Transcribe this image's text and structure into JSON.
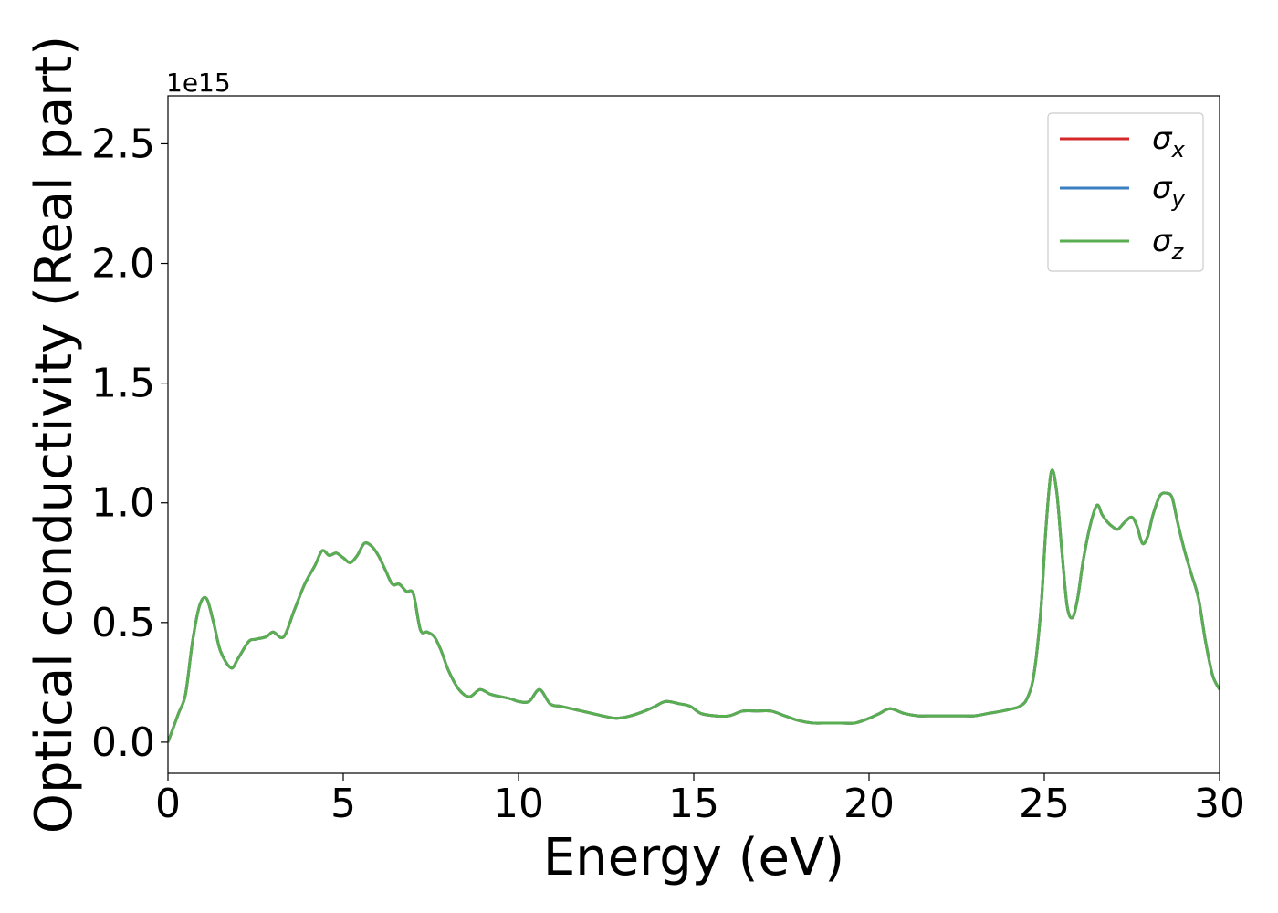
{
  "chart_data": {
    "type": "line",
    "xlabel": "Energy (eV)",
    "ylabel": "Optical conductivity (Real part)",
    "y_offset_text": "1e15",
    "xlim": [
      0,
      30
    ],
    "ylim": [
      -0.13,
      2.7
    ],
    "y_scale_factor": 1000000000000000.0,
    "grid": false,
    "legend_position": "top-right",
    "x_ticks": [
      0,
      5,
      10,
      15,
      20,
      25,
      30
    ],
    "x_tick_labels": [
      "0",
      "5",
      "10",
      "15",
      "20",
      "25",
      "30"
    ],
    "y_ticks": [
      0.0,
      0.5,
      1.0,
      1.5,
      2.0,
      2.5
    ],
    "y_tick_labels": [
      "0.0",
      "0.5",
      "1.0",
      "1.5",
      "2.0",
      "2.5"
    ],
    "x": [
      0,
      0.3,
      0.5,
      0.7,
      0.9,
      1.1,
      1.3,
      1.5,
      1.8,
      2.0,
      2.3,
      2.5,
      2.8,
      3.0,
      3.3,
      3.6,
      3.9,
      4.2,
      4.4,
      4.6,
      4.8,
      5.0,
      5.2,
      5.4,
      5.6,
      5.8,
      6.0,
      6.2,
      6.4,
      6.6,
      6.8,
      7.0,
      7.2,
      7.4,
      7.6,
      7.8,
      8.0,
      8.3,
      8.6,
      8.9,
      9.2,
      9.5,
      9.8,
      10.0,
      10.3,
      10.6,
      10.9,
      11.2,
      11.5,
      11.8,
      12.1,
      12.4,
      12.8,
      13.2,
      13.6,
      13.9,
      14.2,
      14.6,
      14.9,
      15.2,
      15.6,
      16.0,
      16.4,
      16.8,
      17.2,
      17.6,
      18.0,
      18.4,
      18.8,
      19.2,
      19.6,
      20.0,
      20.3,
      20.6,
      21.0,
      21.4,
      21.8,
      22.2,
      22.6,
      23.0,
      23.4,
      23.8,
      24.1,
      24.3,
      24.5,
      24.7,
      24.9,
      25.05,
      25.2,
      25.35,
      25.5,
      25.65,
      25.8,
      25.95,
      26.1,
      26.3,
      26.5,
      26.65,
      26.8,
      26.95,
      27.1,
      27.3,
      27.5,
      27.65,
      27.8,
      27.95,
      28.1,
      28.3,
      28.5,
      28.65,
      28.8,
      29.0,
      29.2,
      29.4,
      29.6,
      29.8,
      30.0
    ],
    "series": [
      {
        "name": "σ_x",
        "name_base": "σ",
        "name_sub": "x",
        "color": "#d62728",
        "values": [
          0.0,
          0.12,
          0.2,
          0.42,
          0.57,
          0.6,
          0.5,
          0.38,
          0.31,
          0.35,
          0.42,
          0.43,
          0.44,
          0.46,
          0.44,
          0.55,
          0.66,
          0.74,
          0.8,
          0.78,
          0.79,
          0.77,
          0.75,
          0.78,
          0.83,
          0.82,
          0.78,
          0.72,
          0.66,
          0.66,
          0.63,
          0.62,
          0.47,
          0.46,
          0.44,
          0.38,
          0.3,
          0.22,
          0.19,
          0.22,
          0.2,
          0.19,
          0.18,
          0.17,
          0.17,
          0.22,
          0.16,
          0.15,
          0.14,
          0.13,
          0.12,
          0.11,
          0.1,
          0.11,
          0.13,
          0.15,
          0.17,
          0.16,
          0.15,
          0.12,
          0.11,
          0.11,
          0.13,
          0.13,
          0.13,
          0.11,
          0.09,
          0.08,
          0.08,
          0.08,
          0.08,
          0.1,
          0.12,
          0.14,
          0.12,
          0.11,
          0.11,
          0.11,
          0.11,
          0.11,
          0.12,
          0.13,
          0.14,
          0.15,
          0.18,
          0.28,
          0.55,
          0.9,
          1.13,
          1.05,
          0.8,
          0.57,
          0.52,
          0.6,
          0.75,
          0.9,
          0.99,
          0.95,
          0.92,
          0.9,
          0.89,
          0.92,
          0.94,
          0.9,
          0.83,
          0.86,
          0.95,
          1.03,
          1.04,
          1.02,
          0.92,
          0.8,
          0.7,
          0.6,
          0.42,
          0.28,
          0.22
        ]
      },
      {
        "name": "σ_y",
        "name_base": "σ",
        "name_sub": "y",
        "color": "#3a7fc1",
        "values": [
          0.0,
          0.12,
          0.2,
          0.42,
          0.57,
          0.6,
          0.5,
          0.38,
          0.31,
          0.35,
          0.42,
          0.43,
          0.44,
          0.46,
          0.44,
          0.55,
          0.66,
          0.74,
          0.8,
          0.78,
          0.79,
          0.77,
          0.75,
          0.78,
          0.83,
          0.82,
          0.78,
          0.72,
          0.66,
          0.66,
          0.63,
          0.62,
          0.47,
          0.46,
          0.44,
          0.38,
          0.3,
          0.22,
          0.19,
          0.22,
          0.2,
          0.19,
          0.18,
          0.17,
          0.17,
          0.22,
          0.16,
          0.15,
          0.14,
          0.13,
          0.12,
          0.11,
          0.1,
          0.11,
          0.13,
          0.15,
          0.17,
          0.16,
          0.15,
          0.12,
          0.11,
          0.11,
          0.13,
          0.13,
          0.13,
          0.11,
          0.09,
          0.08,
          0.08,
          0.08,
          0.08,
          0.1,
          0.12,
          0.14,
          0.12,
          0.11,
          0.11,
          0.11,
          0.11,
          0.11,
          0.12,
          0.13,
          0.14,
          0.15,
          0.18,
          0.28,
          0.55,
          0.9,
          1.13,
          1.05,
          0.8,
          0.57,
          0.52,
          0.6,
          0.75,
          0.9,
          0.99,
          0.95,
          0.92,
          0.9,
          0.89,
          0.92,
          0.94,
          0.9,
          0.83,
          0.86,
          0.95,
          1.03,
          1.04,
          1.02,
          0.92,
          0.8,
          0.7,
          0.6,
          0.42,
          0.28,
          0.22
        ]
      },
      {
        "name": "σ_z",
        "name_base": "σ",
        "name_sub": "z",
        "color": "#5aae52",
        "values": [
          0.0,
          0.12,
          0.2,
          0.42,
          0.57,
          0.6,
          0.5,
          0.38,
          0.31,
          0.35,
          0.42,
          0.43,
          0.44,
          0.46,
          0.44,
          0.55,
          0.66,
          0.74,
          0.8,
          0.78,
          0.79,
          0.77,
          0.75,
          0.78,
          0.83,
          0.82,
          0.78,
          0.72,
          0.66,
          0.66,
          0.63,
          0.62,
          0.47,
          0.46,
          0.44,
          0.38,
          0.3,
          0.22,
          0.19,
          0.22,
          0.2,
          0.19,
          0.18,
          0.17,
          0.17,
          0.22,
          0.16,
          0.15,
          0.14,
          0.13,
          0.12,
          0.11,
          0.1,
          0.11,
          0.13,
          0.15,
          0.17,
          0.16,
          0.15,
          0.12,
          0.11,
          0.11,
          0.13,
          0.13,
          0.13,
          0.11,
          0.09,
          0.08,
          0.08,
          0.08,
          0.08,
          0.1,
          0.12,
          0.14,
          0.12,
          0.11,
          0.11,
          0.11,
          0.11,
          0.11,
          0.12,
          0.13,
          0.14,
          0.15,
          0.18,
          0.28,
          0.55,
          0.9,
          1.13,
          1.05,
          0.8,
          0.57,
          0.52,
          0.6,
          0.75,
          0.9,
          0.99,
          0.95,
          0.92,
          0.9,
          0.89,
          0.92,
          0.94,
          0.9,
          0.83,
          0.86,
          0.95,
          1.03,
          1.04,
          1.02,
          0.92,
          0.8,
          0.7,
          0.6,
          0.42,
          0.28,
          0.22
        ]
      }
    ]
  }
}
